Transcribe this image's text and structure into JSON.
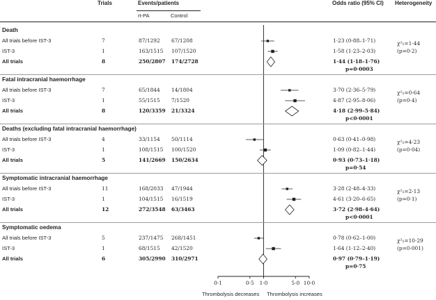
{
  "headers": {
    "trials": "Trials",
    "events": "Events/patients",
    "rtpa": "rt-PA",
    "control": "Control",
    "or": "Odds ratio (95% CI)",
    "het": "Heterogeneity"
  },
  "sections": [
    {
      "title": "Death",
      "rows": [
        {
          "label": "All trials before IST-3",
          "trials": "7",
          "rtpa": "87/1292",
          "control": "67/1208",
          "or": "1·23 (0·88–1·71)",
          "est": 1.23,
          "lo": 0.88,
          "hi": 1.71,
          "bold": false
        },
        {
          "label": "IST-3",
          "trials": "1",
          "rtpa": "163/1515",
          "control": "107/1520",
          "or": "1·58 (1·23–2·03)",
          "est": 1.58,
          "lo": 1.23,
          "hi": 2.03,
          "bold": false
        },
        {
          "label": "All trials",
          "trials": "8",
          "rtpa": "250/2807",
          "control": "174/2728",
          "or": "1·44 (1·18–1·76)",
          "p": "p=0·0003",
          "est": 1.44,
          "lo": 1.18,
          "hi": 1.76,
          "bold": true
        }
      ],
      "het": [
        "χ²₁=1·44",
        "(p=0·2)"
      ]
    },
    {
      "title": "Fatal intracranial haemorrhage",
      "rows": [
        {
          "label": "All trials before IST-3",
          "trials": "7",
          "rtpa": "65/1844",
          "control": "14/1804",
          "or": "3·70 (2·36–5·79)",
          "est": 3.7,
          "lo": 2.36,
          "hi": 5.79,
          "bold": false
        },
        {
          "label": "IST-3",
          "trials": "1",
          "rtpa": "55/1515",
          "control": "7/1520",
          "or": "4·87 (2·95–8·06)",
          "est": 4.87,
          "lo": 2.95,
          "hi": 8.06,
          "bold": false
        },
        {
          "label": "All trials",
          "trials": "8",
          "rtpa": "120/3359",
          "control": "21/3324",
          "or": "4·18 (2·99–5·84)",
          "p": "p<0·0001",
          "est": 4.18,
          "lo": 2.99,
          "hi": 5.84,
          "bold": true
        }
      ],
      "het": [
        "χ²₁=0·64",
        "(p=0·4)"
      ]
    },
    {
      "title": "Deaths (excluding fatal intracranial haemorrhage)",
      "rows": [
        {
          "label": "All trials before IST-3",
          "trials": "4",
          "rtpa": "33/1154",
          "control": "50/1114",
          "or": "0·63 (0·41–0·98)",
          "est": 0.63,
          "lo": 0.41,
          "hi": 0.98,
          "bold": false
        },
        {
          "label": "IST-3",
          "trials": "1",
          "rtpa": "108/1515",
          "control": "100/1520",
          "or": "1·09 (0·82–1·44)",
          "est": 1.09,
          "lo": 0.82,
          "hi": 1.44,
          "bold": false
        },
        {
          "label": "All trials",
          "trials": "5",
          "rtpa": "141/2669",
          "control": "150/2634",
          "or": "0·93 (0·73–1·18)",
          "p": "p=0·54",
          "est": 0.93,
          "lo": 0.73,
          "hi": 1.18,
          "bold": true
        }
      ],
      "het": [
        "χ²₁=4·23",
        "(p=0·04)"
      ]
    },
    {
      "title": "Symptomatic intracranial haemorrhage",
      "rows": [
        {
          "label": "All trials before IST-3",
          "trials": "11",
          "rtpa": "168/2033",
          "control": "47/1944",
          "or": "3·28 (2·48–4·33)",
          "est": 3.28,
          "lo": 2.48,
          "hi": 4.33,
          "bold": false
        },
        {
          "label": "IST-3",
          "trials": "1",
          "rtpa": "104/1515",
          "control": "16/1519",
          "or": "4·61 (3·20–6·65)",
          "est": 4.61,
          "lo": 3.2,
          "hi": 6.65,
          "bold": false
        },
        {
          "label": "All trials",
          "trials": "12",
          "rtpa": "272/3548",
          "control": "63/3463",
          "or": "3·72 (2·98–4·64)",
          "p": "p<0·0001",
          "est": 3.72,
          "lo": 2.98,
          "hi": 4.64,
          "bold": true
        }
      ],
      "het": [
        "χ²₁=2·13",
        "(p=0·1)"
      ]
    },
    {
      "title": "Symptomatic oedema",
      "rows": [
        {
          "label": "All trials before IST-3",
          "trials": "5",
          "rtpa": "237/1475",
          "control": "268/1451",
          "or": "0·78 (0·62–1·00)",
          "est": 0.78,
          "lo": 0.62,
          "hi": 1.0,
          "bold": false
        },
        {
          "label": "IST-3",
          "trials": "1",
          "rtpa": "68/1515",
          "control": "42/1520",
          "or": "1·64 (1·12–2·40)",
          "est": 1.64,
          "lo": 1.12,
          "hi": 2.4,
          "bold": false
        },
        {
          "label": "All trials",
          "trials": "6",
          "rtpa": "305/2990",
          "control": "310/2971",
          "or": "0·97 (0·79–1·19)",
          "p": "p=0·75",
          "est": 0.97,
          "lo": 0.79,
          "hi": 1.19,
          "bold": true
        }
      ],
      "het": [
        "χ²₁=10·29",
        "(p=0·001)"
      ]
    }
  ],
  "axis": {
    "ticks": [
      {
        "value": 0.1,
        "label": "0·1"
      },
      {
        "value": 0.5,
        "label": "0·5"
      },
      {
        "value": 1.0,
        "label": "1·0"
      },
      {
        "value": 5.0,
        "label": "5·0"
      },
      {
        "value": 10.0,
        "label": "10·0"
      }
    ],
    "left_label": "Thrombolysis decreases",
    "right_label": "Thrombolysis increases"
  }
}
